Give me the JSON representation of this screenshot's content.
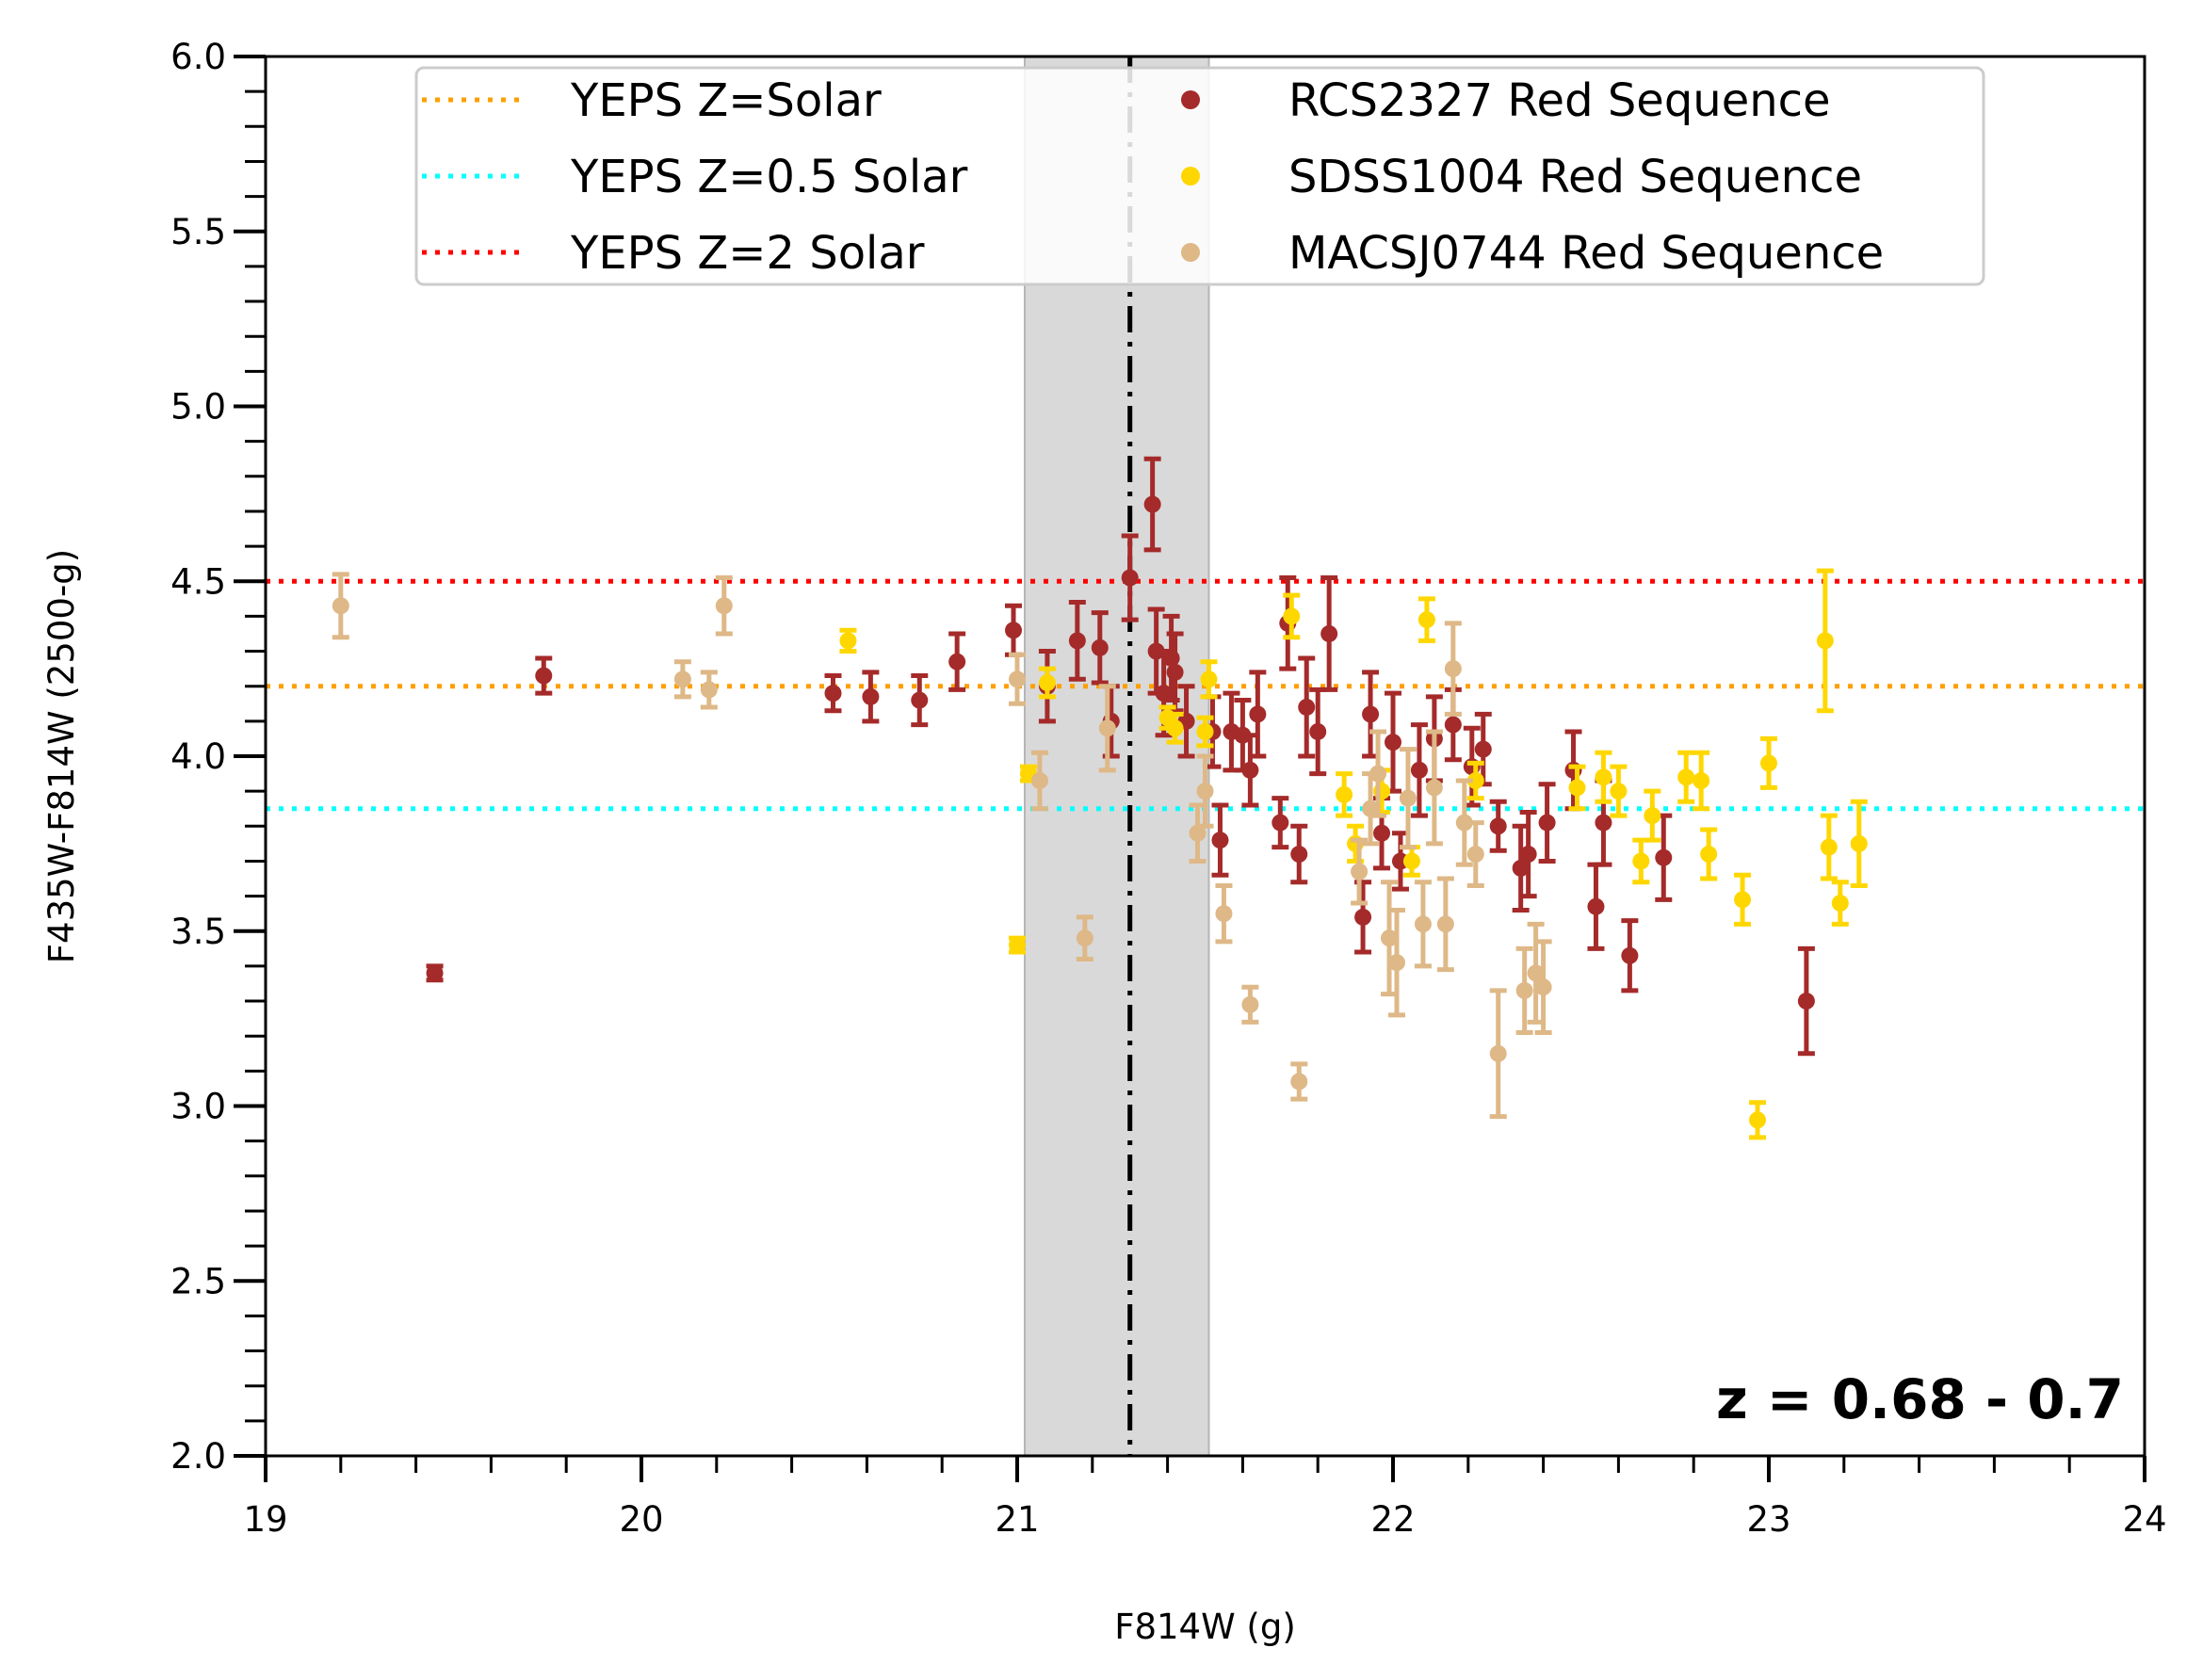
{
  "chart_data": {
    "type": "scatter",
    "title": "",
    "xlabel": "F814W (g)",
    "ylabel": "F435W-F814W (2500-g)",
    "xlim": [
      19,
      24
    ],
    "ylim": [
      2.0,
      6.0
    ],
    "x_ticks": [
      "19",
      "20",
      "21",
      "22",
      "23",
      "24"
    ],
    "y_ticks": [
      "2.0",
      "2.5",
      "3.0",
      "3.5",
      "4.0",
      "4.5",
      "5.0",
      "5.5",
      "6.0"
    ],
    "grid": false,
    "legend_position": "top",
    "annotation": "z = 0.68 - 0.7",
    "shaded_band": {
      "x_start": 21.02,
      "x_end": 21.51,
      "color": "#d9d9d9"
    },
    "vertical_line": {
      "x": 21.3,
      "style": "dash-dot",
      "color": "#000000"
    },
    "horizontal_lines": [
      {
        "name": "YEPS Z=Solar",
        "y": 4.2,
        "color": "#ff9f00"
      },
      {
        "name": "YEPS Z=0.5 Solar",
        "y": 3.85,
        "color": "#00ffff"
      },
      {
        "name": "YEPS Z=2 Solar",
        "y": 4.5,
        "color": "#ff0000"
      }
    ],
    "series": [
      {
        "name": "RCS2327 Red Sequence",
        "color": "#a52a2a",
        "points": [
          [
            19.45,
            3.38,
            0.02
          ],
          [
            19.74,
            4.23,
            0.05
          ],
          [
            20.51,
            4.18,
            0.05
          ],
          [
            20.61,
            4.17,
            0.07
          ],
          [
            20.74,
            4.16,
            0.07
          ],
          [
            20.84,
            4.27,
            0.08
          ],
          [
            20.99,
            4.36,
            0.07
          ],
          [
            21.08,
            4.2,
            0.1
          ],
          [
            21.16,
            4.33,
            0.11
          ],
          [
            21.22,
            4.31,
            0.1
          ],
          [
            21.25,
            4.1,
            0.1
          ],
          [
            21.3,
            4.51,
            0.12
          ],
          [
            21.36,
            4.72,
            0.13
          ],
          [
            21.37,
            4.3,
            0.12
          ],
          [
            21.39,
            4.18,
            0.12
          ],
          [
            21.41,
            4.28,
            0.12
          ],
          [
            21.42,
            4.24,
            0.11
          ],
          [
            21.45,
            4.1,
            0.1
          ],
          [
            21.52,
            4.07,
            0.1
          ],
          [
            21.54,
            3.76,
            0.1
          ],
          [
            21.57,
            4.07,
            0.11
          ],
          [
            21.6,
            4.06,
            0.1
          ],
          [
            21.62,
            3.96,
            0.1
          ],
          [
            21.64,
            4.12,
            0.12
          ],
          [
            21.7,
            3.81,
            0.07
          ],
          [
            21.72,
            4.38,
            0.13
          ],
          [
            21.75,
            3.72,
            0.08
          ],
          [
            21.77,
            4.14,
            0.14
          ],
          [
            21.8,
            4.07,
            0.12
          ],
          [
            21.83,
            4.35,
            0.16
          ],
          [
            21.92,
            3.54,
            0.1
          ],
          [
            21.94,
            4.12,
            0.12
          ],
          [
            21.97,
            3.78,
            0.1
          ],
          [
            22.0,
            4.04,
            0.14
          ],
          [
            22.02,
            3.7,
            0.08
          ],
          [
            22.07,
            3.96,
            0.13
          ],
          [
            22.11,
            4.05,
            0.12
          ],
          [
            22.16,
            4.09,
            0.1
          ],
          [
            22.21,
            3.97,
            0.11
          ],
          [
            22.24,
            4.02,
            0.1
          ],
          [
            22.28,
            3.8,
            0.07
          ],
          [
            22.34,
            3.68,
            0.12
          ],
          [
            22.36,
            3.72,
            0.12
          ],
          [
            22.41,
            3.81,
            0.11
          ],
          [
            22.48,
            3.96,
            0.11
          ],
          [
            22.54,
            3.57,
            0.12
          ],
          [
            22.56,
            3.81,
            0.12
          ],
          [
            22.63,
            3.43,
            0.1
          ],
          [
            22.72,
            3.71,
            0.12
          ],
          [
            23.1,
            3.3,
            0.15
          ]
        ]
      },
      {
        "name": "SDSS1004 Red Sequence",
        "color": "#ffd700",
        "points": [
          [
            20.55,
            4.33,
            0.03
          ],
          [
            21.0,
            3.46,
            0.02
          ],
          [
            21.03,
            3.95,
            0.02
          ],
          [
            21.08,
            4.21,
            0.04
          ],
          [
            21.4,
            4.11,
            0.03
          ],
          [
            21.42,
            4.08,
            0.04
          ],
          [
            21.5,
            4.07,
            0.04
          ],
          [
            21.51,
            4.22,
            0.05
          ],
          [
            21.73,
            4.4,
            0.06
          ],
          [
            21.87,
            3.89,
            0.06
          ],
          [
            21.9,
            3.75,
            0.05
          ],
          [
            21.97,
            3.9,
            0.06
          ],
          [
            22.05,
            3.7,
            0.04
          ],
          [
            22.09,
            4.39,
            0.06
          ],
          [
            22.22,
            3.93,
            0.05
          ],
          [
            22.49,
            3.91,
            0.06
          ],
          [
            22.56,
            3.94,
            0.07
          ],
          [
            22.6,
            3.9,
            0.07
          ],
          [
            22.66,
            3.7,
            0.06
          ],
          [
            22.69,
            3.83,
            0.07
          ],
          [
            22.78,
            3.94,
            0.07
          ],
          [
            22.82,
            3.93,
            0.08
          ],
          [
            22.84,
            3.72,
            0.07
          ],
          [
            22.93,
            3.59,
            0.07
          ],
          [
            22.97,
            2.96,
            0.05
          ],
          [
            23.0,
            3.98,
            0.07
          ],
          [
            23.15,
            4.33,
            0.2
          ],
          [
            23.16,
            3.74,
            0.09
          ],
          [
            23.19,
            3.58,
            0.06
          ],
          [
            23.24,
            3.75,
            0.12
          ]
        ]
      },
      {
        "name": "MACSJ0744 Red Sequence",
        "color": "#deb887",
        "points": [
          [
            19.2,
            4.43,
            0.09
          ],
          [
            20.11,
            4.22,
            0.05
          ],
          [
            20.18,
            4.19,
            0.05
          ],
          [
            20.22,
            4.43,
            0.08
          ],
          [
            21.0,
            4.22,
            0.07
          ],
          [
            21.06,
            3.93,
            0.08
          ],
          [
            21.18,
            3.48,
            0.06
          ],
          [
            21.24,
            4.08,
            0.12
          ],
          [
            21.48,
            3.78,
            0.08
          ],
          [
            21.5,
            3.9,
            0.1
          ],
          [
            21.55,
            3.55,
            0.08
          ],
          [
            21.62,
            3.29,
            0.05
          ],
          [
            21.75,
            3.07,
            0.05
          ],
          [
            21.91,
            3.67,
            0.09
          ],
          [
            21.94,
            3.85,
            0.1
          ],
          [
            21.96,
            3.95,
            0.12
          ],
          [
            21.99,
            3.48,
            0.16
          ],
          [
            22.01,
            3.41,
            0.15
          ],
          [
            22.04,
            3.88,
            0.14
          ],
          [
            22.08,
            3.52,
            0.12
          ],
          [
            22.11,
            3.91,
            0.16
          ],
          [
            22.14,
            3.52,
            0.13
          ],
          [
            22.16,
            4.25,
            0.13
          ],
          [
            22.19,
            3.81,
            0.12
          ],
          [
            22.22,
            3.72,
            0.09
          ],
          [
            22.28,
            3.15,
            0.18
          ],
          [
            22.35,
            3.33,
            0.12
          ],
          [
            22.38,
            3.38,
            0.14
          ],
          [
            22.4,
            3.34,
            0.13
          ]
        ]
      }
    ]
  }
}
